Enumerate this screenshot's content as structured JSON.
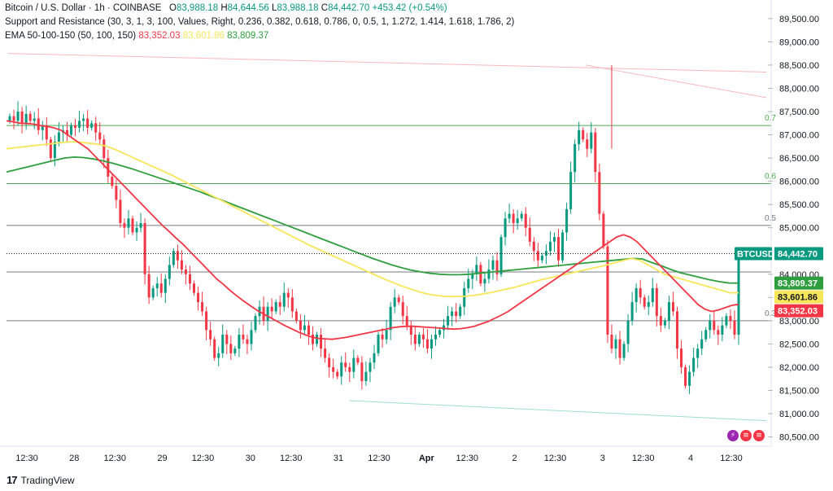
{
  "legend": {
    "symbol": "Bitcoin / U.S. Dollar · 1h · COINBASE",
    "o_label": "O",
    "o_value": "83,988.18",
    "h_label": "H",
    "h_value": "84,644.56",
    "l_label": "L",
    "l_value": "83,988.18",
    "c_label": "C",
    "c_value": "84,442.70",
    "change": "+453.42 (+0.54%)",
    "sr_text": "Support and Resistance (30, 3, 1, 3, 100, Values, Right, 0.236, 0.382, 0.618, 0.786, 0, 0.5, 1, 1.272, 1.414, 1.618, 1.786, 2)",
    "ema_label": "EMA 50-100-150 (50, 100, 150)",
    "ema50": "83,352.03",
    "ema100": "83,601.86",
    "ema150": "83,809.37"
  },
  "footer": {
    "logo": "17",
    "brand": "TradingView"
  },
  "icons": {
    "lightning": "lightning-icon",
    "flag1": "us-flag-icon",
    "flag2": "us-flag-icon"
  },
  "colors": {
    "up": "#089981",
    "down": "#f23645",
    "ema50": "#f23645",
    "ema100": "#f7e65a",
    "ema150": "#2e9e3e",
    "fib": "#4caf50",
    "price_line": "#131722"
  },
  "chart_data": {
    "type": "candlestick",
    "symbol": "BTCUSD",
    "interval": "1h",
    "ylim": [
      80300,
      89900
    ],
    "y_ticks": [
      80500,
      81000,
      81500,
      82000,
      82500,
      83000,
      83500,
      84000,
      84500,
      85000,
      85500,
      86000,
      86500,
      87000,
      87500,
      88000,
      88500,
      89000,
      89500
    ],
    "y_tick_labels": [
      "80,500.00",
      "81,000.00",
      "81,500.00",
      "82,000.00",
      "82,500.00",
      "83,000.00",
      "83,500.00",
      "84,000.00",
      "84,500.00",
      "85,000.00",
      "85,500.00",
      "86,000.00",
      "86,500.00",
      "87,000.00",
      "87,500.00",
      "88,000.00",
      "88,500.00",
      "89,000.00",
      "89,500.00"
    ],
    "x_tick_labels": [
      "12:30",
      "28",
      "12:30",
      "29",
      "12:30",
      "30",
      "12:30",
      "31",
      "12:30",
      "Apr",
      "12:30",
      "2",
      "12:30",
      "3",
      "12:30",
      "4",
      "12:30"
    ],
    "x_tick_index": [
      6,
      20,
      32,
      46,
      58,
      72,
      84,
      98,
      110,
      124,
      136,
      150,
      162,
      176,
      188,
      202,
      214
    ],
    "current_price": 84442.7,
    "current_label": "BTCUSD",
    "current_price_label": "84,442.70",
    "ema_labels": [
      {
        "name": "EMA 150",
        "value": 83809.37,
        "label": "83,809.37",
        "color": "#2e9e3e"
      },
      {
        "name": "EMA 100",
        "value": 83601.86,
        "label": "83,601.86",
        "color": "#f7e65a"
      },
      {
        "name": "EMA 50",
        "value": 83352.03,
        "label": "83,352.03",
        "color": "#f23645"
      }
    ],
    "fib_levels": [
      {
        "price": 87200,
        "label": "0.7",
        "color": "#4caf50"
      },
      {
        "price": 85950,
        "label": "0.6",
        "color": "#4caf50"
      },
      {
        "price": 85050,
        "label": "0.5",
        "color": "#787b86"
      },
      {
        "price": 84050,
        "label": "",
        "color": "#787b86"
      },
      {
        "price": 83000,
        "label": "0.3",
        "color": "#787b86"
      }
    ],
    "trend_lines": [
      {
        "from": [
          0,
          88750
        ],
        "to": [
          231,
          88350
        ],
        "color": "#f8b8be"
      },
      {
        "from": [
          176,
          88500
        ],
        "to": [
          231,
          87800
        ],
        "color": "#f8b8be"
      },
      {
        "from": [
          104,
          81280
        ],
        "to": [
          231,
          80850
        ],
        "color": "#9ee0c9"
      }
    ],
    "closes": [
      87400,
      87300,
      87500,
      87250,
      87450,
      87300,
      87350,
      87100,
      87200,
      86900,
      86500,
      86850,
      87050,
      87100,
      87000,
      87200,
      87150,
      87300,
      87350,
      87150,
      87250,
      87050,
      86900,
      86500,
      86100,
      85900,
      85600,
      85100,
      85000,
      85200,
      84900,
      85000,
      85100,
      84000,
      83500,
      83700,
      83800,
      83600,
      83900,
      84200,
      84500,
      84300,
      84100,
      84000,
      83800,
      83600,
      83400,
      83200,
      82800,
      82600,
      82200,
      82300,
      82700,
      82500,
      82300,
      82400,
      82700,
      82600,
      82500,
      82800,
      83100,
      83300,
      83000,
      83300,
      83200,
      83400,
      83300,
      83600,
      83500,
      83200,
      83000,
      82800,
      82900,
      82700,
      82500,
      82700,
      82400,
      82200,
      82000,
      81900,
      81800,
      82100,
      82000,
      81900,
      82200,
      82100,
      81700,
      81900,
      82100,
      82300,
      82700,
      82600,
      82800,
      83300,
      83500,
      83400,
      83100,
      82900,
      82700,
      82500,
      82700,
      82600,
      82400,
      82600,
      82700,
      82800,
      82900,
      83100,
      83200,
      83100,
      83300,
      83700,
      83900,
      84000,
      84200,
      83800,
      83900,
      84100,
      84300,
      84000,
      84800,
      85200,
      85300,
      85100,
      85200,
      85300,
      85000,
      84700,
      84500,
      84300,
      84400,
      84500,
      84700,
      84800,
      84300,
      84900,
      85400,
      86200,
      86800,
      87100,
      86900,
      86700,
      87050,
      86200,
      85300,
      84600,
      82700,
      82400,
      82600,
      82200,
      82500,
      83000,
      83400,
      83700,
      83500,
      83300,
      83400,
      83700,
      83100,
      82900,
      83000,
      83400,
      83200,
      82400,
      82000,
      81600,
      81900,
      82200,
      82400,
      82600,
      82800,
      83000,
      82800,
      82700,
      82900,
      83100,
      83000,
      82700,
      84442
    ],
    "ema50": [
      87300,
      87280,
      87250,
      87240,
      87230,
      87200,
      87180,
      87150,
      87100,
      87000,
      86900,
      86800,
      86700,
      86550,
      86400,
      86250,
      86100,
      85950,
      85800,
      85650,
      85500,
      85350,
      85200,
      85050,
      84920,
      84780,
      84650,
      84500,
      84350,
      84200,
      84050,
      83900,
      83780,
      83650,
      83530,
      83420,
      83320,
      83220,
      83140,
      83060,
      82980,
      82900,
      82830,
      82760,
      82700,
      82650,
      82620,
      82610,
      82600,
      82620,
      82640,
      82670,
      82700,
      82730,
      82760,
      82790,
      82820,
      82850,
      82870,
      82880,
      82880,
      82870,
      82860,
      82850,
      82840,
      82830,
      82820,
      82830,
      82850,
      82880,
      82930,
      82980,
      83050,
      83120,
      83200,
      83300,
      83400,
      83500,
      83600,
      83700,
      83800,
      83900,
      84000,
      84100,
      84200,
      84300,
      84400,
      84500,
      84600,
      84700,
      84800,
      84850,
      84800,
      84700,
      84550,
      84400,
      84250,
      84100,
      83950,
      83800,
      83650,
      83500,
      83350,
      83250,
      83200,
      83230,
      83280,
      83330,
      83352
    ],
    "ema100": [
      86700,
      86720,
      86740,
      86760,
      86780,
      86800,
      86820,
      86840,
      86850,
      86840,
      86820,
      86800,
      86760,
      86700,
      86620,
      86540,
      86460,
      86380,
      86300,
      86220,
      86140,
      86050,
      85960,
      85870,
      85780,
      85690,
      85600,
      85510,
      85420,
      85330,
      85240,
      85150,
      85060,
      84970,
      84880,
      84790,
      84700,
      84610,
      84530,
      84450,
      84370,
      84290,
      84210,
      84130,
      84050,
      83970,
      83890,
      83820,
      83750,
      83690,
      83630,
      83580,
      83550,
      83530,
      83520,
      83520,
      83530,
      83550,
      83580,
      83610,
      83650,
      83690,
      83730,
      83780,
      83830,
      83880,
      83920,
      83960,
      84000,
      84040,
      84080,
      84120,
      84160,
      84200,
      84250,
      84300,
      84340,
      84300,
      84200,
      84100,
      84000,
      83950,
      83900,
      83850,
      83800,
      83750,
      83700,
      83650,
      83600,
      83601
    ],
    "ema150": [
      86200,
      86250,
      86300,
      86350,
      86400,
      86450,
      86500,
      86520,
      86510,
      86480,
      86440,
      86390,
      86330,
      86270,
      86200,
      86130,
      86060,
      85990,
      85920,
      85850,
      85780,
      85700,
      85620,
      85540,
      85460,
      85380,
      85300,
      85220,
      85140,
      85060,
      84980,
      84900,
      84820,
      84740,
      84660,
      84580,
      84500,
      84420,
      84340,
      84270,
      84200,
      84140,
      84090,
      84050,
      84020,
      84000,
      83990,
      83990,
      84000,
      84020,
      84040,
      84060,
      84080,
      84100,
      84120,
      84140,
      84160,
      84180,
      84200,
      84220,
      84240,
      84260,
      84280,
      84300,
      84320,
      84340,
      84330,
      84250,
      84180,
      84100,
      84030,
      83980,
      83930,
      83880,
      83840,
      83810,
      83809
    ]
  }
}
